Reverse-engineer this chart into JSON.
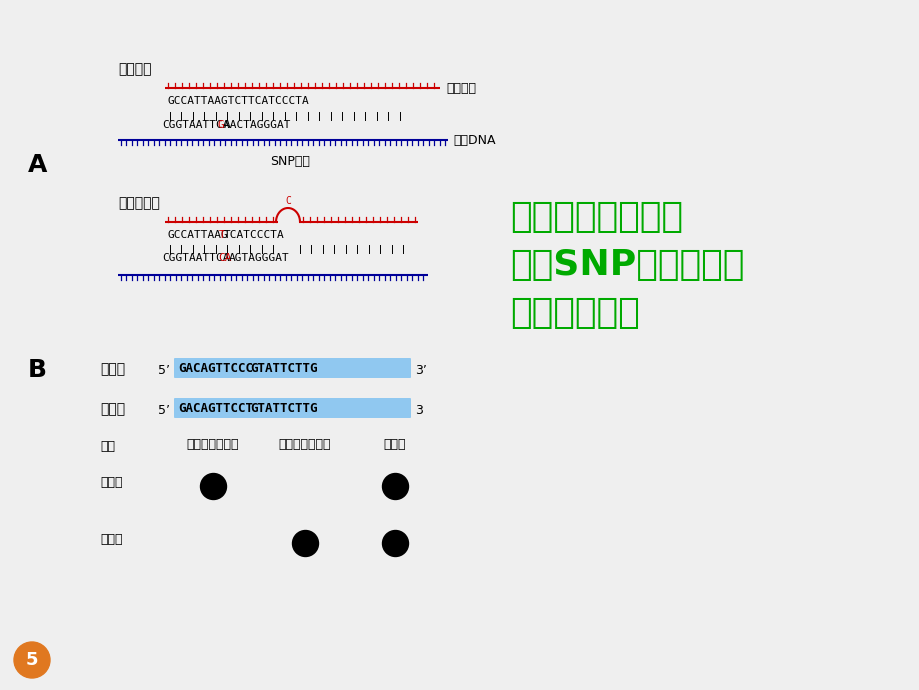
{
  "bg_color": "#efefef",
  "title_color": "#00aa00",
  "text_color": "#000000",
  "red_color": "#cc0000",
  "blue_color": "#000099",
  "seq_bg_color": "#90c8f0",
  "stable_label": "稳定杂交",
  "unstable_label": "不稳定杂交",
  "probe_label": "寻核苷酸",
  "target_label": "目标DNA",
  "snp_label": "SNP位点",
  "wt_label": "野生型",
  "mut_label": "突变型",
  "probe_row_label": "探针",
  "homo_normal_label": "纯合子（正常）",
  "homo_mut_label": "纯合子（突变）",
  "hetero_label": "杂合子",
  "section_A": "A",
  "section_B": "B",
  "title_line1": "寻核苷等位酸杂交",
  "title_line2": "分析SNP和基因特意",
  "title_line3": "寻核苷酸杂交",
  "stable_seq1": "GCCATTAAGTCTTCATCCCTA",
  "stable_seq2_pre": "CGGTAATTCA",
  "stable_seq2_mid": "G",
  "stable_seq2_post": "AACTAGGGAT",
  "unstable_seq1_pre": "GCCATTAAG",
  "unstable_seq1_mid": "T",
  "unstable_seq1_post": "TCATCCCTA",
  "unstable_seq2_pre": "CGGTAATTCA",
  "unstable_seq2_mid": "CA",
  "unstable_seq2_post": "AGTAGGGAT",
  "wt_seq_pre": "GACAGTTCCC",
  "wt_seq_post": "GTATTCTTG",
  "mut_seq_pre": "GACAGTTCCT",
  "mut_seq_post": "GTATTCTTG",
  "page_num": "5",
  "page_circle_color": "#e07820",
  "wt_5prime": "5’",
  "wt_3prime": "3’",
  "mut_5prime": "5’",
  "mut_3prime": "3"
}
